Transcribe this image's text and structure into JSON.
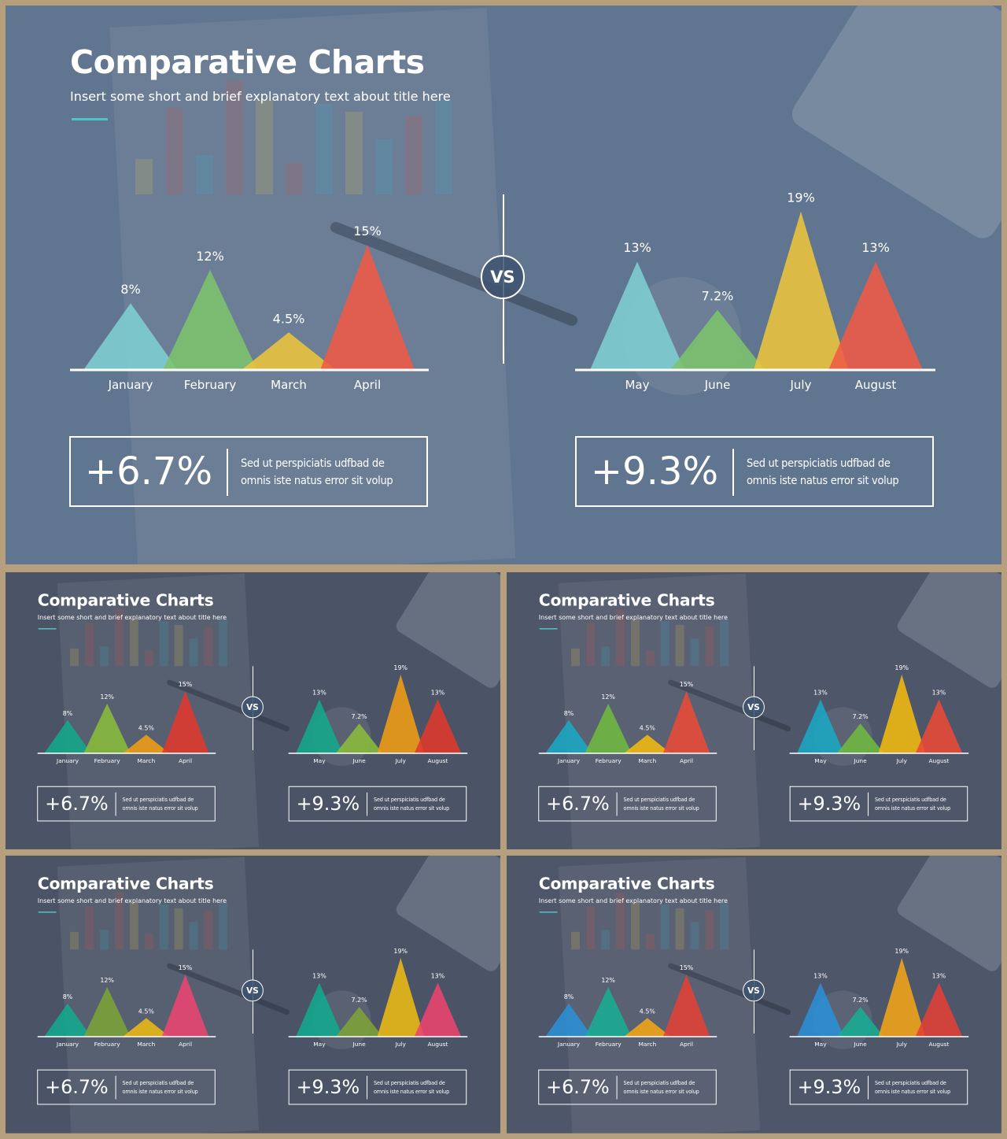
{
  "title": "Comparative Charts",
  "subtitle": "Insert some short and brief explanatory text about title here",
  "vs_label": "VS",
  "left_stat": {
    "value": "+6.7%",
    "line1": "Sed ut perspiciatis udfbad de",
    "line2": "omnis iste natus error sit volup"
  },
  "right_stat": {
    "value": "+9.3%",
    "line1": "Sed ut perspiciatis udfbad de",
    "line2": "omnis iste natus error sit volup"
  },
  "chart_data": [
    {
      "type": "area",
      "categories": [
        "January",
        "February",
        "March",
        "April"
      ],
      "values": [
        8,
        12,
        4.5,
        15
      ],
      "labels": [
        "8%",
        "12%",
        "4.5%",
        "15%"
      ]
    },
    {
      "type": "area",
      "categories": [
        "May",
        "June",
        "July",
        "August"
      ],
      "values": [
        13,
        7.2,
        19,
        13
      ],
      "labels": [
        "13%",
        "7.2%",
        "19%",
        "13%"
      ]
    }
  ],
  "palettes": {
    "main": [
      "#7ecfd1",
      "#7cc46c",
      "#edc43c",
      "#ef5a45"
    ],
    "s1": [
      "#13a98a",
      "#8abc3a",
      "#f19d14",
      "#e0382b"
    ],
    "s2": [
      "#1aa9c4",
      "#6fb940",
      "#f2b90f",
      "#ea4a37"
    ],
    "s3": [
      "#12a98e",
      "#7da238",
      "#ecba15",
      "#ec4470"
    ],
    "s4": [
      "#2b8fd5",
      "#18ad93",
      "#f4a517",
      "#e34136"
    ]
  },
  "thumb_backgrounds": {
    "s1": "#4b5466",
    "s2": "#4e5669",
    "s3": "#4b5466",
    "s4": "#4e5669"
  }
}
